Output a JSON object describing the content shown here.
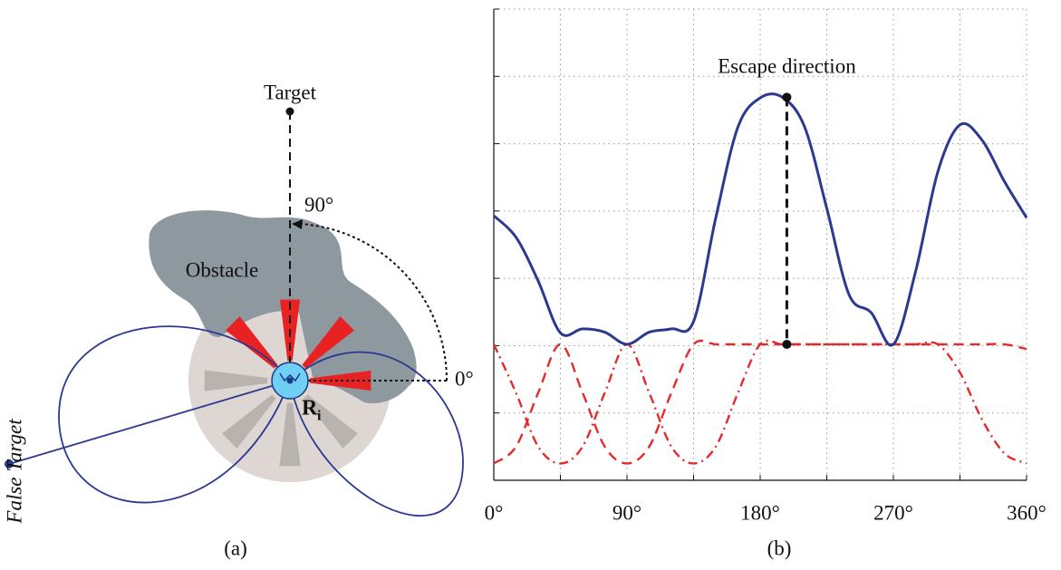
{
  "panel_a": {
    "target": "Target",
    "angle_up": "90°",
    "obstacle": "Obstacle",
    "angle_zero": "0°",
    "robot_label": "R",
    "robot_subscript": "i",
    "false_target": "False Target",
    "caption": "(a)"
  },
  "chart_data": {
    "type": "line",
    "caption": "(b)",
    "x": [
      0,
      15,
      30,
      45,
      60,
      75,
      90,
      105,
      120,
      135,
      150,
      165,
      180,
      195,
      210,
      225,
      240,
      255,
      270,
      285,
      300,
      315,
      330,
      345,
      360
    ],
    "series": [
      {
        "color": "#2b3990",
        "linestyle": "solid",
        "values": [
          3.93,
          3.61,
          2.96,
          2.19,
          2.25,
          2.2,
          2.02,
          2.2,
          2.25,
          2.36,
          3.9,
          5.25,
          5.68,
          5.69,
          5.25,
          4.04,
          2.76,
          2.49,
          2.02,
          3.1,
          4.58,
          5.28,
          5.05,
          4.44,
          3.9
        ]
      },
      {
        "color": "#e32b2b",
        "linestyle": "dashed",
        "values": [
          0.25,
          0.5,
          1.3,
          2.02,
          1.3,
          0.5,
          0.25,
          0.5,
          1.3,
          2.02,
          2.02,
          2.02,
          2.02,
          2.02,
          2.02,
          2.02,
          2.02,
          2.02,
          2.02,
          2.02,
          2.02,
          2.02,
          2.02,
          2.02,
          1.95
        ]
      },
      {
        "color": "#e32b2b",
        "linestyle": "dashdot",
        "values": [
          2.02,
          1.3,
          0.5,
          0.25,
          0.5,
          1.3,
          2.02,
          1.3,
          0.5,
          0.25,
          0.5,
          1.3,
          2.02,
          2.02,
          2.02,
          2.02,
          2.02,
          2.02,
          2.02,
          2.02,
          2.02,
          1.6,
          0.9,
          0.4,
          0.25
        ]
      }
    ],
    "annotation": {
      "text": "Escape direction",
      "x": 198,
      "y": 5.69,
      "y_base": 2.02
    },
    "xlim": [
      0,
      360
    ],
    "xticks": [
      {
        "value": 0,
        "label": "0°"
      },
      {
        "value": 90,
        "label": "90°"
      },
      {
        "value": 180,
        "label": "180°"
      },
      {
        "value": 270,
        "label": "270°"
      },
      {
        "value": 360,
        "label": "360°"
      }
    ],
    "minor_xticks": [
      45,
      135,
      225,
      315
    ],
    "ylim": [
      0,
      7
    ],
    "yticks": [
      1,
      2,
      3,
      4,
      5,
      6,
      7
    ],
    "show_ytick_labels": false,
    "grid": true
  }
}
